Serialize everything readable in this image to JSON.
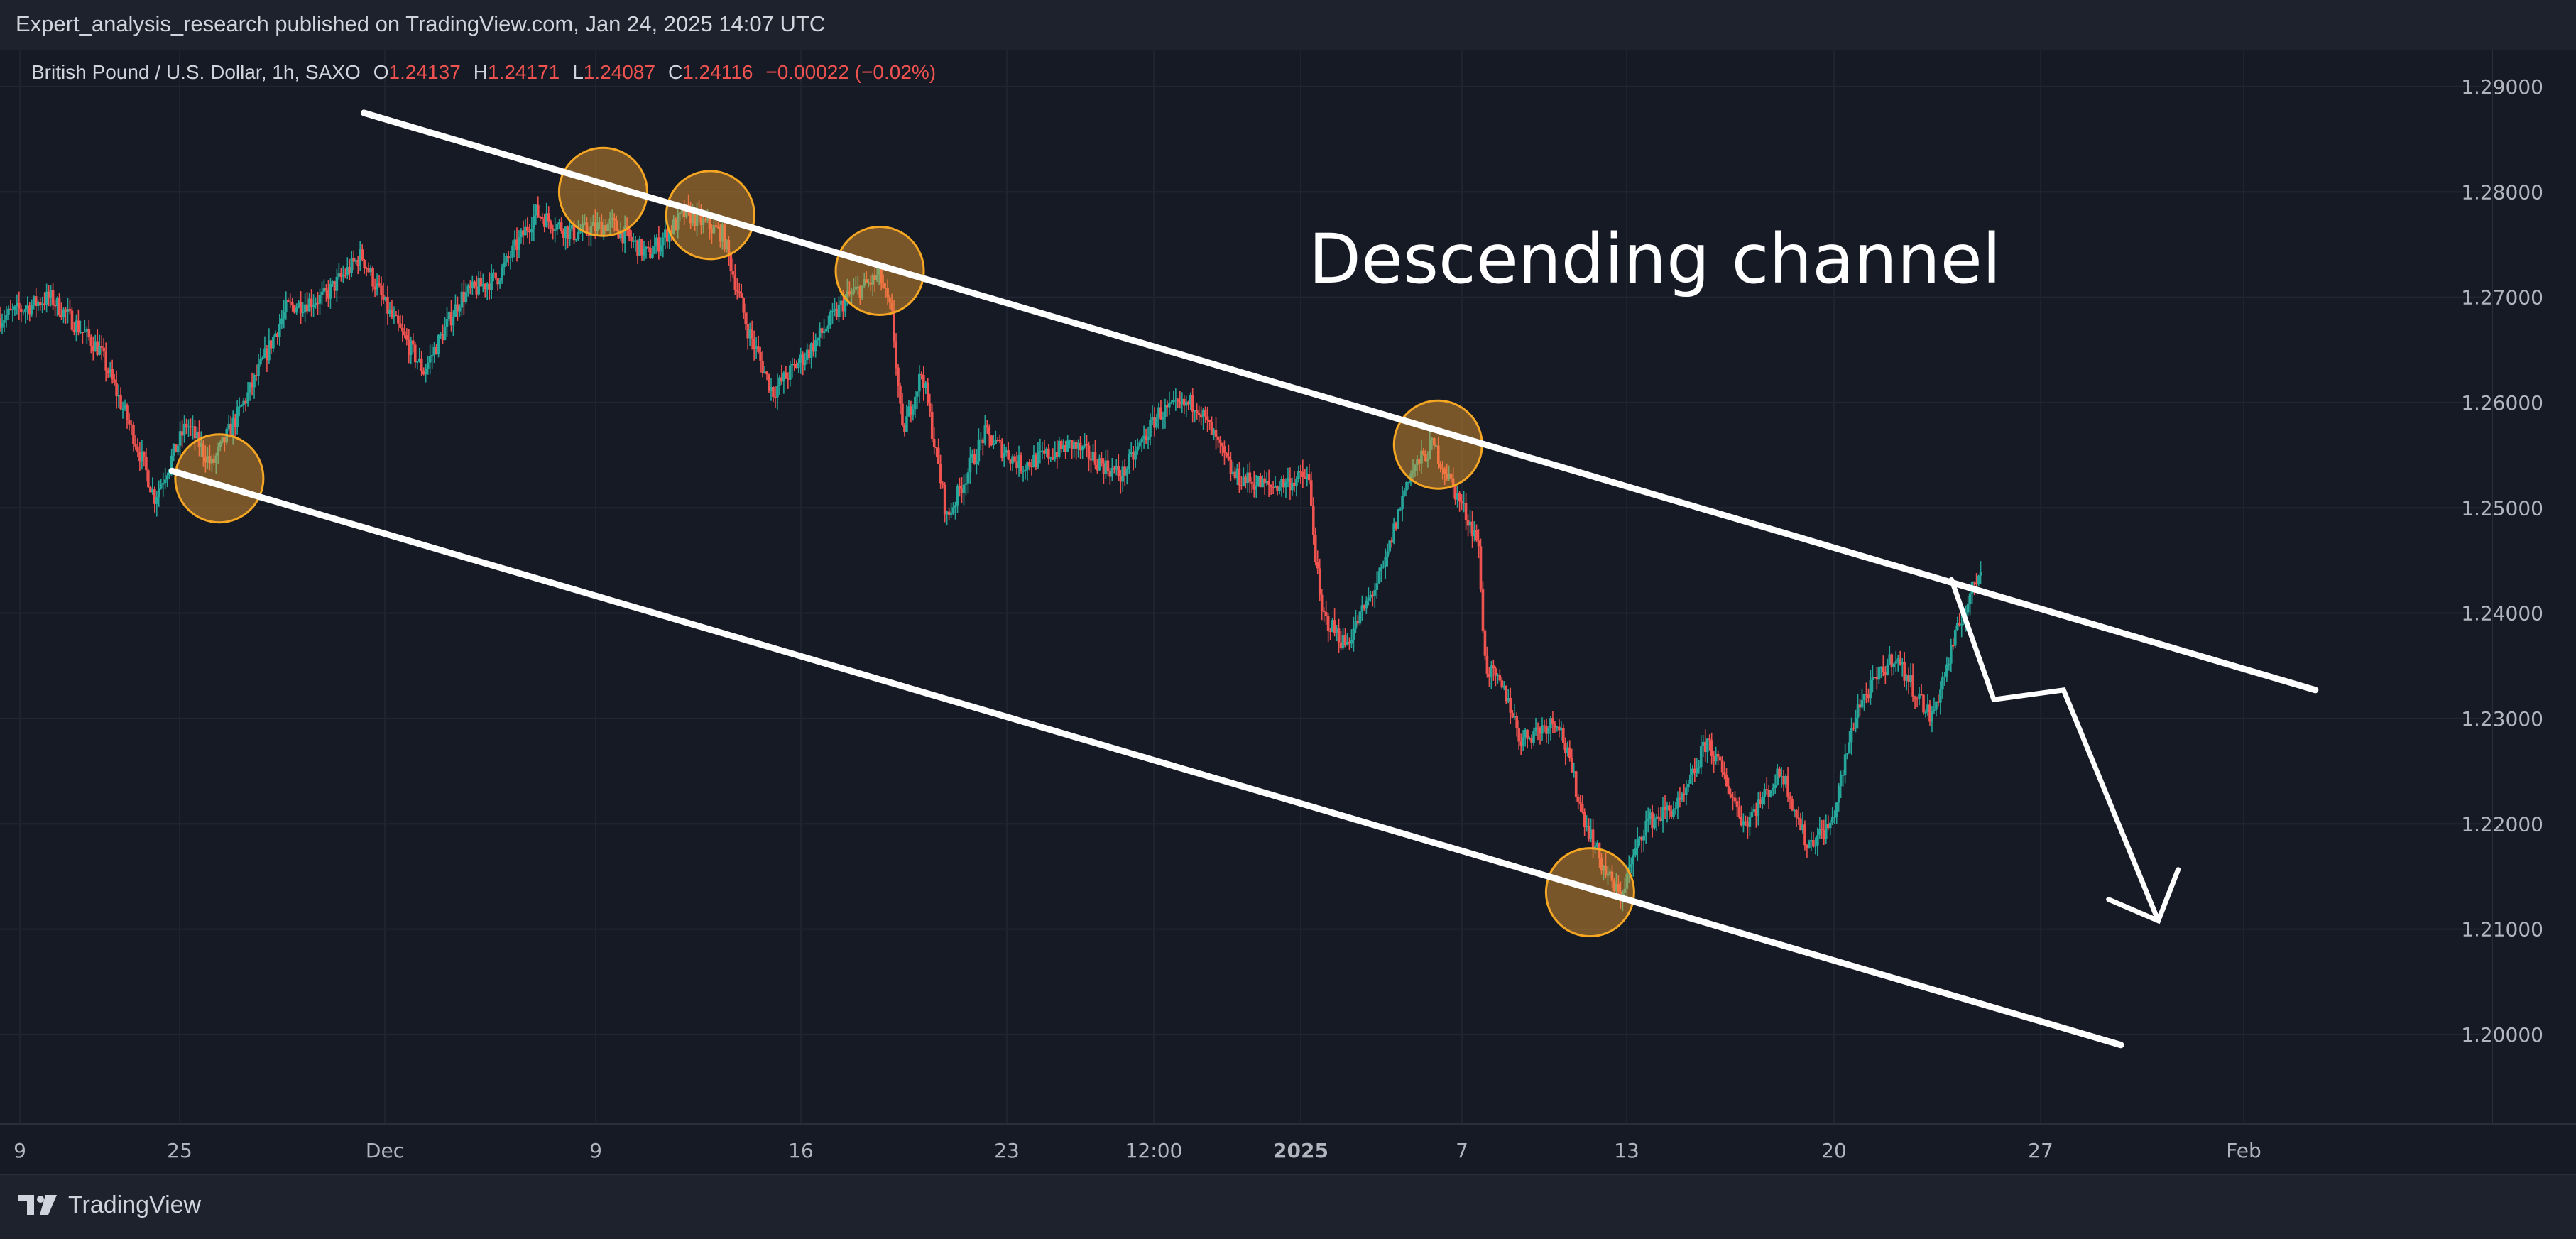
{
  "header": {
    "publisher_line": "Expert_analysis_research published on TradingView.com, Jan 24, 2025 14:07 UTC"
  },
  "legend": {
    "symbol": "British Pound / U.S. Dollar, 1h, SAXO",
    "open_label": "O",
    "open_value": "1.24137",
    "high_label": "H",
    "high_value": "1.24171",
    "low_label": "L",
    "low_value": "1.24087",
    "close_label": "C",
    "close_value": "1.24116",
    "change": "−0.00022 (−0.02%)"
  },
  "footer": {
    "brand": "TradingView"
  },
  "colors": {
    "background": "#161a25",
    "up": "#26a69a",
    "down": "#ef5350",
    "channel_line": "#ffffff",
    "touch_circle_fill": "#f0a030",
    "touch_circle_stroke": "#f5a623"
  },
  "chart_data": {
    "type": "candlestick",
    "title": "British Pound / U.S. Dollar, 1h, SAXO",
    "annotation": "Descending channel",
    "x_ticks": [
      "9",
      "25",
      "Dec",
      "9",
      "16",
      "23",
      "12:00",
      "2025",
      "7",
      "13",
      "20",
      "27",
      "Feb"
    ],
    "y_ticks": [
      "1.29000",
      "1.28000",
      "1.27000",
      "1.26000",
      "1.25000",
      "1.24000",
      "1.23000",
      "1.22000",
      "1.21000",
      "1.20000"
    ],
    "ylim": [
      1.1915,
      1.2935
    ],
    "grid": true,
    "x_domain": [
      0,
      100
    ],
    "price_path": [
      [
        0,
        1.268
      ],
      [
        2,
        1.27
      ],
      [
        4,
        1.265
      ],
      [
        5.5,
        1.256
      ],
      [
        6.2,
        1.251
      ],
      [
        7.5,
        1.258
      ],
      [
        8.5,
        1.254
      ],
      [
        10,
        1.261
      ],
      [
        11.5,
        1.269
      ],
      [
        13,
        1.27
      ],
      [
        14.5,
        1.274
      ],
      [
        15.5,
        1.269
      ],
      [
        17,
        1.263
      ],
      [
        18.5,
        1.27
      ],
      [
        20,
        1.272
      ],
      [
        21.5,
        1.278
      ],
      [
        23,
        1.276
      ],
      [
        24.5,
        1.277
      ],
      [
        26,
        1.274
      ],
      [
        27.5,
        1.278
      ],
      [
        29,
        1.276
      ],
      [
        30,
        1.267
      ],
      [
        31,
        1.261
      ],
      [
        32.5,
        1.265
      ],
      [
        34,
        1.27
      ],
      [
        35.3,
        1.272
      ],
      [
        35.8,
        1.268
      ],
      [
        36.2,
        1.257
      ],
      [
        37,
        1.263
      ],
      [
        38,
        1.249
      ],
      [
        39.5,
        1.257
      ],
      [
        41,
        1.254
      ],
      [
        43,
        1.256
      ],
      [
        45,
        1.253
      ],
      [
        46.5,
        1.259
      ],
      [
        48,
        1.26
      ],
      [
        49.5,
        1.253
      ],
      [
        51,
        1.252
      ],
      [
        52.5,
        1.253
      ],
      [
        53,
        1.24
      ],
      [
        54,
        1.237
      ],
      [
        55.5,
        1.244
      ],
      [
        56.5,
        1.253
      ],
      [
        57.5,
        1.256
      ],
      [
        58.5,
        1.251
      ],
      [
        59.3,
        1.247
      ],
      [
        59.6,
        1.235
      ],
      [
        60.5,
        1.232
      ],
      [
        61,
        1.228
      ],
      [
        62.5,
        1.23
      ],
      [
        63.5,
        1.221
      ],
      [
        64.3,
        1.216
      ],
      [
        65,
        1.213
      ],
      [
        66,
        1.22
      ],
      [
        67.5,
        1.222
      ],
      [
        68.5,
        1.228
      ],
      [
        70,
        1.22
      ],
      [
        71.5,
        1.225
      ],
      [
        72.5,
        1.218
      ],
      [
        73.5,
        1.22
      ],
      [
        74.5,
        1.231
      ],
      [
        76,
        1.236
      ],
      [
        77.5,
        1.23
      ],
      [
        78.5,
        1.238
      ],
      [
        79.5,
        1.2445
      ]
    ],
    "touch_points": [
      {
        "x": 8.8,
        "y": 1.2528
      },
      {
        "x": 24.2,
        "y": 1.28
      },
      {
        "x": 28.5,
        "y": 1.2778
      },
      {
        "x": 35.3,
        "y": 1.2725
      },
      {
        "x": 57.7,
        "y": 1.256
      },
      {
        "x": 63.8,
        "y": 1.2135
      }
    ],
    "channel": {
      "upper": [
        [
          14.6,
          1.2875
        ],
        [
          92.9,
          1.2327
        ]
      ],
      "lower": [
        [
          6.9,
          1.2535
        ],
        [
          85.1,
          1.199
        ]
      ]
    },
    "projection": [
      [
        78.3,
        1.2432
      ],
      [
        80.0,
        1.2318
      ],
      [
        82.8,
        1.2327
      ],
      [
        86.6,
        1.2108
      ]
    ]
  }
}
